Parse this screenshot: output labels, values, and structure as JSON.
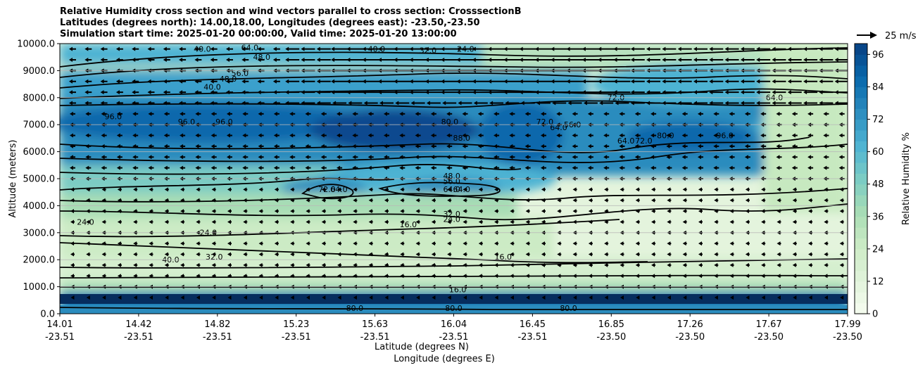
{
  "title": {
    "line1": "Relative Humidity cross section and wind vectors parallel to cross section: CrosssectionB",
    "line2": "Latitudes (degrees north): 14.00,18.00, Longitudes (degrees east): -23.50,-23.50",
    "line3": "Simulation start time: 2025-01-20 00:00:00, Valid time: 2025-01-20 13:00:00"
  },
  "chart_data": {
    "type": "heatmap",
    "xlabel": "Latitude (degrees N)",
    "xlabel2": "Longitude (degrees E)",
    "ylabel": "Altitude (meters)",
    "ylim": [
      0,
      10000
    ],
    "yticks": [
      "0.0",
      "1000.0",
      "2000.0",
      "3000.0",
      "4000.0",
      "5000.0",
      "6000.0",
      "7000.0",
      "8000.0",
      "9000.0",
      "10000.0"
    ],
    "xticks_lat": [
      "14.01",
      "14.42",
      "14.82",
      "15.23",
      "15.63",
      "16.04",
      "16.45",
      "16.85",
      "17.26",
      "17.67",
      "17.99"
    ],
    "xticks_lon": [
      "-23.51",
      "-23.51",
      "-23.51",
      "-23.51",
      "-23.51",
      "-23.51",
      "-23.51",
      "-23.50",
      "-23.50",
      "-23.50",
      "-23.50"
    ],
    "grid": "horizontal",
    "colorbar": {
      "label": "Relative Humidity %",
      "ticks": [
        "0",
        "12",
        "24",
        "36",
        "48",
        "60",
        "72",
        "84",
        "96"
      ],
      "range": [
        0,
        100
      ],
      "colormap": [
        "#f7fcf0",
        "#e0f3db",
        "#ccebc5",
        "#a8ddb5",
        "#7bccc4",
        "#4eb3d3",
        "#2b8cbe",
        "#0868ac",
        "#084081"
      ]
    },
    "quiver_key": "25 m/s",
    "contour_labels": [
      {
        "text": "40.0",
        "x": 14.73,
        "y": 9700
      },
      {
        "text": "40.0",
        "x": 15.61,
        "y": 9700
      },
      {
        "text": "32.0",
        "x": 15.87,
        "y": 9650
      },
      {
        "text": "24.0",
        "x": 16.06,
        "y": 9700
      },
      {
        "text": "48.0",
        "x": 15.03,
        "y": 9400
      },
      {
        "text": "64.0",
        "x": 14.97,
        "y": 9750
      },
      {
        "text": "56.0",
        "x": 14.92,
        "y": 8800
      },
      {
        "text": "48.0",
        "x": 14.86,
        "y": 8600
      },
      {
        "text": "40.0",
        "x": 14.78,
        "y": 8300
      },
      {
        "text": "72.0",
        "x": 16.82,
        "y": 7900
      },
      {
        "text": "64.0",
        "x": 17.62,
        "y": 7900
      },
      {
        "text": "96.0",
        "x": 14.28,
        "y": 7200
      },
      {
        "text": "96.0",
        "x": 14.65,
        "y": 7000
      },
      {
        "text": "96.0",
        "x": 14.84,
        "y": 7000
      },
      {
        "text": "80.0",
        "x": 15.98,
        "y": 7000
      },
      {
        "text": "88.0",
        "x": 16.04,
        "y": 6400
      },
      {
        "text": "72.0",
        "x": 16.46,
        "y": 7000
      },
      {
        "text": "64.0",
        "x": 16.53,
        "y": 6800
      },
      {
        "text": "56.0",
        "x": 16.6,
        "y": 6900
      },
      {
        "text": "64.0",
        "x": 16.87,
        "y": 6300
      },
      {
        "text": "72.0",
        "x": 16.96,
        "y": 6300
      },
      {
        "text": "80.0",
        "x": 17.07,
        "y": 6500
      },
      {
        "text": "96.0",
        "x": 17.37,
        "y": 6500
      },
      {
        "text": "48.0",
        "x": 15.99,
        "y": 5000
      },
      {
        "text": "56.0",
        "x": 15.99,
        "y": 4800
      },
      {
        "text": "64.0",
        "x": 15.99,
        "y": 4500
      },
      {
        "text": "64.0",
        "x": 16.04,
        "y": 4500
      },
      {
        "text": "72.0",
        "x": 15.36,
        "y": 4500
      },
      {
        "text": "64.0",
        "x": 15.42,
        "y": 4500
      },
      {
        "text": "32.0",
        "x": 15.99,
        "y": 3600
      },
      {
        "text": "24.0",
        "x": 15.99,
        "y": 3400
      },
      {
        "text": "16.0",
        "x": 15.77,
        "y": 3200
      },
      {
        "text": "24.0",
        "x": 14.14,
        "y": 3300
      },
      {
        "text": "24.0",
        "x": 14.76,
        "y": 2900
      },
      {
        "text": "40.0",
        "x": 14.57,
        "y": 1900
      },
      {
        "text": "32.0",
        "x": 14.79,
        "y": 2000
      },
      {
        "text": "16.0",
        "x": 16.25,
        "y": 2000
      },
      {
        "text": "16.0",
        "x": 16.02,
        "y": 800
      },
      {
        "text": "80.0",
        "x": 15.5,
        "y": 100
      },
      {
        "text": "80.0",
        "x": 16.0,
        "y": 100
      },
      {
        "text": "80.0",
        "x": 16.58,
        "y": 100
      }
    ]
  }
}
